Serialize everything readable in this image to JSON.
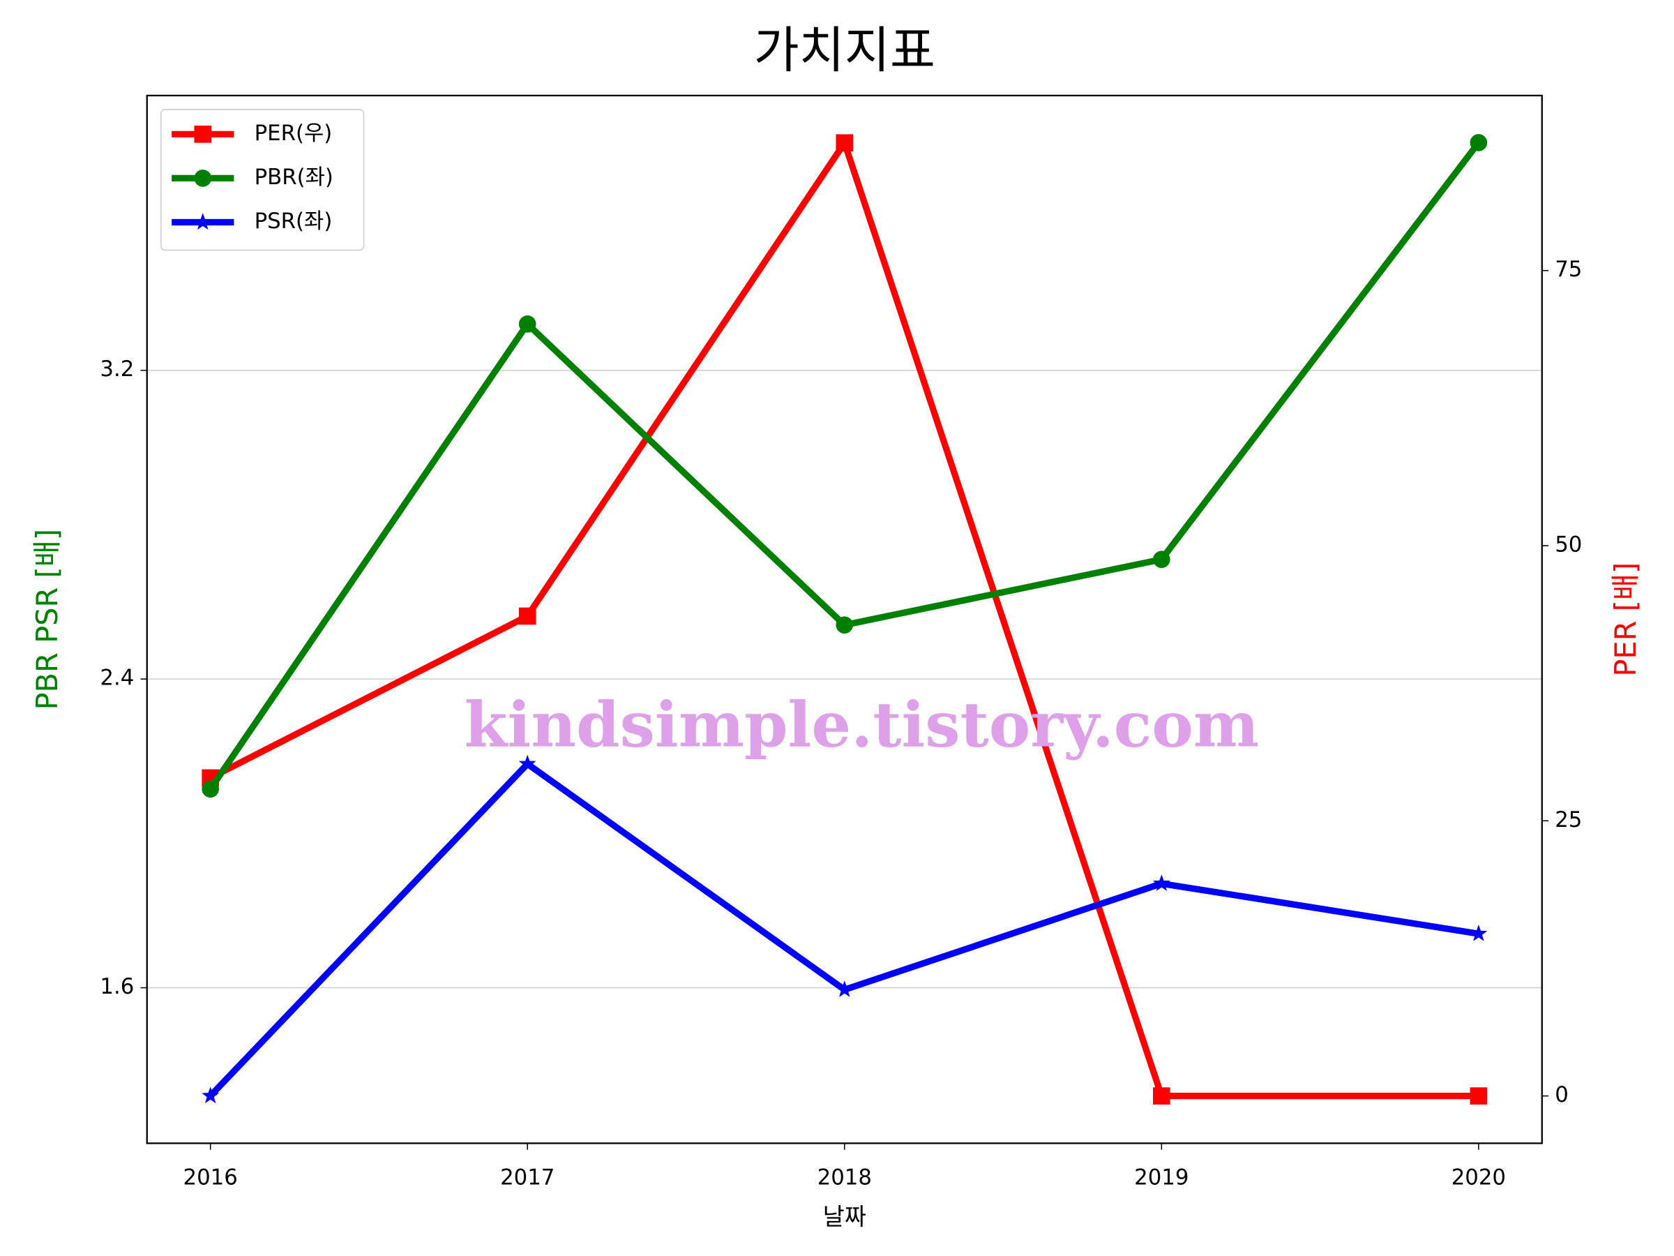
{
  "chart_data": {
    "type": "line",
    "title": "가치지표",
    "xlabel": "날짜",
    "ylabel": "PBR PSR [배]",
    "y2label": "PER [배]",
    "annotation": "kindsimple.tistory.com",
    "x": [
      2016,
      2017,
      2018,
      2019,
      2020
    ],
    "xlim": [
      2015.8,
      2020.2
    ],
    "xticks": [
      2016,
      2017,
      2018,
      2019,
      2020
    ],
    "ylim": [
      1.197,
      3.912
    ],
    "yticks": [
      1.6,
      2.4,
      3.2
    ],
    "y2lim": [
      -4.3,
      90.9
    ],
    "y2ticks": [
      0,
      25,
      50,
      75
    ],
    "grid": true,
    "legend": "upper left",
    "series": [
      {
        "name": "PER(우)",
        "color": "#ff0000",
        "marker": "square",
        "axis": "y2",
        "values": [
          28.9,
          43.6,
          86.6,
          0,
          0
        ]
      },
      {
        "name": "PBR(좌)",
        "color": "#008000",
        "marker": "circle",
        "values": [
          2.115,
          3.32,
          2.54,
          2.71,
          3.79
        ]
      },
      {
        "name": "PSR(좌)",
        "color": "#0000ff",
        "marker": "star",
        "values": [
          1.32,
          2.18,
          1.595,
          1.87,
          1.74
        ]
      }
    ]
  }
}
